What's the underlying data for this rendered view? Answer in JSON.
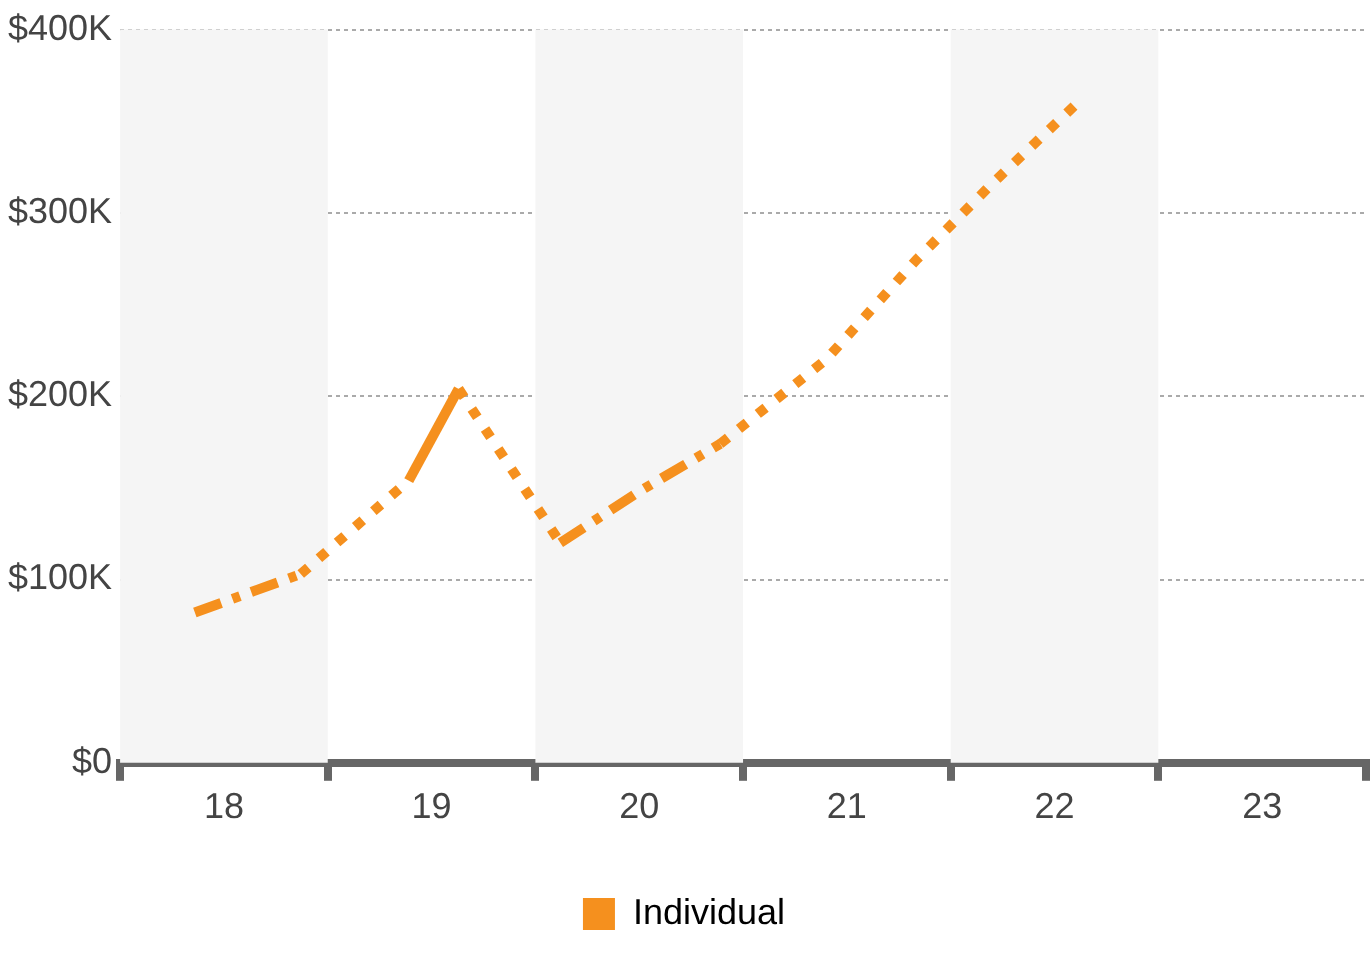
{
  "chart_data": {
    "type": "line",
    "xlim": [
      17.5,
      23.5
    ],
    "xticks": [
      {
        "value": 17.5,
        "label": null
      },
      18,
      {
        "value": 18.5,
        "label": null
      },
      19,
      {
        "value": 19.5,
        "label": null
      },
      20,
      {
        "value": 20.5,
        "label": null
      },
      21,
      {
        "value": 21.5,
        "label": null
      },
      22,
      {
        "value": 22.5,
        "label": null
      },
      23,
      {
        "value": 23.5,
        "label": null
      }
    ],
    "ylim": [
      0,
      400000
    ],
    "yticks": [
      {
        "value": 0,
        "label": "$0"
      },
      {
        "value": 100000,
        "label": "$100K"
      },
      {
        "value": 200000,
        "label": "$200K"
      },
      {
        "value": 300000,
        "label": "$300K"
      },
      {
        "value": 400000,
        "label": "$400K"
      }
    ],
    "grid": "y",
    "legend": "bottom",
    "marker": "none",
    "bands": [
      {
        "axis": "x",
        "from": 17.5,
        "to": 18.5,
        "color": "#f5f5f5"
      },
      {
        "axis": "x",
        "from": 19.5,
        "to": 20.5,
        "color": "#f5f5f5"
      },
      {
        "axis": "x",
        "from": 21.5,
        "to": 22.5,
        "color": "#f5f5f5"
      }
    ],
    "series": [
      {
        "name": "Individual",
        "color": "#f5901e",
        "line_style": [
          "dashed",
          "dotted",
          "solid",
          "dotted",
          "dashed",
          "dashed",
          "dotted",
          "dotted",
          "dotted",
          "dotted"
        ],
        "x": [
          17.86,
          18.37,
          18.89,
          19.13,
          19.62,
          20.0,
          20.39,
          20.9,
          21.34,
          21.7,
          22.12
        ],
        "values": [
          82000,
          103000,
          154000,
          204000,
          120000,
          148000,
          174000,
          220000,
          275000,
          316000,
          361000
        ]
      }
    ]
  }
}
